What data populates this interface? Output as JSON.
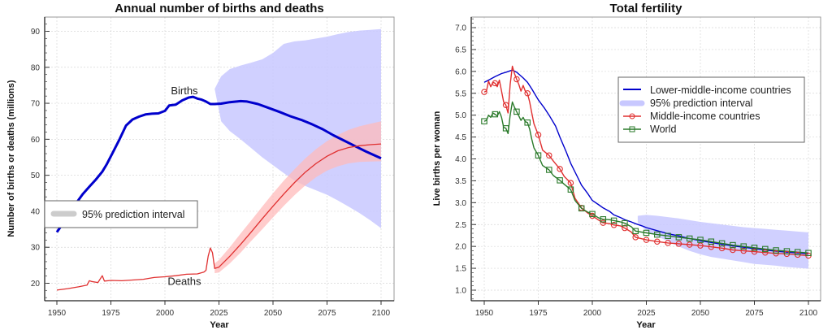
{
  "chart_data": [
    {
      "type": "line",
      "title": "Annual number of births and deaths",
      "xlabel": "Year",
      "ylabel": "Number of births or deaths (millions)",
      "xlim": [
        1945,
        2105
      ],
      "ylim": [
        15,
        94
      ],
      "xticks": [
        1950,
        1975,
        2000,
        2025,
        2050,
        2075,
        2100
      ],
      "yticks": [
        20,
        30,
        40,
        50,
        60,
        70,
        80,
        90
      ],
      "grid": true,
      "legend": {
        "position": "left-middle",
        "entries": [
          "95% prediction interval"
        ]
      },
      "annotations": [
        {
          "text": "Births",
          "x": 2009,
          "y": 72.5
        },
        {
          "text": "Deaths",
          "x": 2009,
          "y": 19.5
        }
      ],
      "series": [
        {
          "name": "Births",
          "color": "#0000cc",
          "x": [
            1950,
            1953,
            1956,
            1959,
            1962,
            1965,
            1968,
            1971,
            1973,
            1976,
            1979,
            1982,
            1985,
            1988,
            1991,
            1994,
            1997,
            2000,
            2002,
            2005,
            2008,
            2011,
            2013,
            2015,
            2017,
            2019,
            2021,
            2023,
            2026,
            2030,
            2035,
            2038,
            2043,
            2048,
            2053,
            2058,
            2063,
            2068,
            2073,
            2078,
            2083,
            2088,
            2093,
            2100
          ],
          "y": [
            34.2,
            36.8,
            39.5,
            42.3,
            44.8,
            46.8,
            48.8,
            51.0,
            53.0,
            56.5,
            60.0,
            63.8,
            65.5,
            66.3,
            66.9,
            67.1,
            67.2,
            67.9,
            69.4,
            69.6,
            70.8,
            71.6,
            71.8,
            71.3,
            71.0,
            70.5,
            69.8,
            69.8,
            69.9,
            70.3,
            70.6,
            70.5,
            69.8,
            68.7,
            67.6,
            66.4,
            65.4,
            64.2,
            62.8,
            61.1,
            59.6,
            58.1,
            56.6,
            54.7
          ]
        },
        {
          "name": "Births 95% prediction interval",
          "type": "area",
          "color": "#c8c8ff",
          "x": [
            2023,
            2026,
            2030,
            2035,
            2040,
            2045,
            2050,
            2055,
            2060,
            2065,
            2070,
            2075,
            2080,
            2085,
            2090,
            2095,
            2100
          ],
          "lower": [
            74.0,
            65.0,
            62.3,
            60.0,
            57.5,
            55.0,
            52.8,
            50.6,
            48.5,
            47.0,
            45.8,
            44.6,
            43.0,
            41.3,
            39.5,
            37.5,
            35.3
          ],
          "upper": [
            74.0,
            77.5,
            79.5,
            80.5,
            81.3,
            82.2,
            84.0,
            86.5,
            87.2,
            87.5,
            88.0,
            88.5,
            89.2,
            89.8,
            90.2,
            90.4,
            90.6
          ]
        },
        {
          "name": "Deaths",
          "color": "#e03030",
          "x": [
            1950,
            1955,
            1960,
            1964,
            1965,
            1966,
            1969,
            1971,
            1972,
            1975,
            1980,
            1985,
            1990,
            1995,
            2000,
            2005,
            2010,
            2015,
            2018,
            2019,
            2020,
            2021,
            2022,
            2023,
            2025,
            2030,
            2035,
            2040,
            2045,
            2050,
            2055,
            2060,
            2065,
            2070,
            2075,
            2080,
            2085,
            2090,
            2095,
            2100
          ],
          "y": [
            18.1,
            18.5,
            19.0,
            19.5,
            20.7,
            20.5,
            20.2,
            22.1,
            20.6,
            20.8,
            20.7,
            20.9,
            21.1,
            21.6,
            21.8,
            22.1,
            22.5,
            22.6,
            23.1,
            23.6,
            27.5,
            29.8,
            28.5,
            24.1,
            24.5,
            27.5,
            30.8,
            34.3,
            37.9,
            41.4,
            44.8,
            48.0,
            50.9,
            53.3,
            55.3,
            56.8,
            57.7,
            58.2,
            58.5,
            58.7
          ]
        },
        {
          "name": "Deaths 95% prediction interval",
          "type": "area",
          "color": "#ffbbbb",
          "x": [
            2023,
            2025,
            2030,
            2035,
            2040,
            2045,
            2050,
            2055,
            2060,
            2065,
            2070,
            2075,
            2080,
            2085,
            2090,
            2095,
            2100
          ],
          "lower": [
            22.8,
            23.0,
            25.5,
            28.5,
            31.8,
            35.0,
            38.3,
            41.5,
            44.5,
            47.2,
            49.5,
            51.3,
            52.5,
            53.3,
            53.7,
            53.8,
            53.9
          ],
          "upper": [
            25.5,
            26.5,
            30.0,
            33.8,
            37.5,
            41.3,
            45.0,
            48.5,
            51.7,
            54.7,
            57.3,
            59.5,
            61.2,
            62.6,
            63.6,
            64.3,
            65.0
          ]
        }
      ]
    },
    {
      "type": "line",
      "title": "Total fertility",
      "xlabel": "Year",
      "ylabel": "Live births per woman",
      "xlim": [
        1945,
        2105
      ],
      "ylim": [
        0.75,
        7.2
      ],
      "xticks": [
        1950,
        1975,
        2000,
        2025,
        2050,
        2075,
        2100
      ],
      "yticks": [
        1.0,
        1.5,
        2.0,
        2.5,
        3.0,
        3.5,
        4.0,
        4.5,
        5.0,
        5.5,
        6.0,
        6.5,
        7.0
      ],
      "grid": true,
      "legend": {
        "position": "top-right",
        "entries": [
          "Lower-middle-income countries",
          "95% prediction interval",
          "Middle-income countries",
          "World"
        ]
      },
      "series": [
        {
          "name": "Lower-middle-income countries",
          "color": "#0000cc",
          "x": [
            1950,
            1952,
            1955,
            1958,
            1960,
            1963,
            1965,
            1968,
            1970,
            1972,
            1975,
            1978,
            1980,
            1983,
            1985,
            1988,
            1990,
            1993,
            1995,
            1998,
            2000,
            2003,
            2005,
            2008,
            2010,
            2013,
            2015,
            2018,
            2020,
            2023,
            2025,
            2030,
            2035,
            2040,
            2045,
            2050,
            2055,
            2060,
            2065,
            2070,
            2075,
            2080,
            2085,
            2090,
            2095,
            2100
          ],
          "y": [
            5.75,
            5.8,
            5.88,
            5.95,
            5.98,
            6.03,
            5.98,
            5.85,
            5.75,
            5.6,
            5.35,
            5.15,
            5.0,
            4.75,
            4.5,
            4.15,
            3.9,
            3.6,
            3.4,
            3.2,
            3.05,
            2.95,
            2.88,
            2.8,
            2.72,
            2.66,
            2.61,
            2.56,
            2.52,
            2.47,
            2.43,
            2.36,
            2.29,
            2.24,
            2.18,
            2.13,
            2.09,
            2.05,
            2.01,
            1.98,
            1.95,
            1.92,
            1.89,
            1.87,
            1.85,
            1.83
          ]
        },
        {
          "name": "95% prediction interval",
          "type": "area",
          "color": "#c8c8ff",
          "x": [
            2021,
            2025,
            2030,
            2035,
            2040,
            2045,
            2050,
            2055,
            2060,
            2065,
            2070,
            2075,
            2080,
            2085,
            2090,
            2095,
            2100
          ],
          "lower": [
            2.55,
            2.35,
            2.23,
            2.12,
            2.0,
            1.9,
            1.82,
            1.76,
            1.72,
            1.68,
            1.64,
            1.6,
            1.58,
            1.56,
            1.53,
            1.51,
            1.49
          ],
          "upper": [
            2.7,
            2.72,
            2.7,
            2.67,
            2.64,
            2.6,
            2.56,
            2.53,
            2.5,
            2.47,
            2.44,
            2.42,
            2.4,
            2.38,
            2.36,
            2.34,
            2.32
          ]
        },
        {
          "name": "Middle-income countries",
          "color": "#e03030",
          "marker": "circle",
          "x": [
            1950,
            1951,
            1952,
            1953,
            1954,
            1955,
            1956,
            1957,
            1958,
            1959,
            1960,
            1961,
            1962,
            1963,
            1964,
            1965,
            1966,
            1967,
            1968,
            1969,
            1970,
            1971,
            1972,
            1973,
            1975,
            1977,
            1980,
            1982,
            1985,
            1987,
            1990,
            1992,
            1995,
            1998,
            2000,
            2003,
            2005,
            2008,
            2010,
            2013,
            2015,
            2018,
            2020,
            2025,
            2030,
            2035,
            2040,
            2045,
            2050,
            2055,
            2060,
            2065,
            2070,
            2075,
            2080,
            2085,
            2090,
            2095,
            2100
          ],
          "y": [
            5.53,
            5.55,
            5.78,
            5.65,
            5.75,
            5.73,
            5.65,
            5.8,
            5.55,
            5.3,
            5.23,
            5.05,
            5.7,
            6.12,
            5.95,
            5.82,
            5.7,
            5.55,
            5.68,
            5.55,
            5.5,
            5.3,
            5.05,
            4.8,
            4.55,
            4.2,
            4.08,
            3.95,
            3.77,
            3.6,
            3.45,
            3.1,
            2.88,
            2.76,
            2.7,
            2.6,
            2.54,
            2.52,
            2.49,
            2.47,
            2.42,
            2.33,
            2.21,
            2.15,
            2.11,
            2.08,
            2.06,
            2.04,
            2.02,
            1.99,
            1.96,
            1.92,
            1.9,
            1.88,
            1.86,
            1.84,
            1.83,
            1.81,
            1.79
          ],
          "marker_x": [
            1950,
            1955,
            1960,
            1965,
            1970,
            1975,
            1980,
            1985,
            1990,
            1995,
            2000,
            2005,
            2010,
            2015,
            2020,
            2025,
            2030,
            2035,
            2040,
            2045,
            2050,
            2055,
            2060,
            2065,
            2070,
            2075,
            2080,
            2085,
            2090,
            2095,
            2100
          ]
        },
        {
          "name": "World",
          "color": "#2a7a2a",
          "marker": "square",
          "x": [
            1950,
            1951,
            1952,
            1953,
            1954,
            1955,
            1956,
            1957,
            1958,
            1959,
            1960,
            1961,
            1962,
            1963,
            1964,
            1965,
            1966,
            1967,
            1968,
            1969,
            1970,
            1971,
            1972,
            1973,
            1975,
            1977,
            1980,
            1982,
            1985,
            1987,
            1990,
            1992,
            1995,
            1998,
            2000,
            2003,
            2005,
            2008,
            2010,
            2013,
            2015,
            2018,
            2020,
            2025,
            2030,
            2035,
            2040,
            2045,
            2050,
            2055,
            2060,
            2065,
            2070,
            2075,
            2080,
            2085,
            2090,
            2095,
            2100
          ],
          "y": [
            4.86,
            4.88,
            5.0,
            4.95,
            5.05,
            5.02,
            4.98,
            5.08,
            4.95,
            4.72,
            4.7,
            4.58,
            5.0,
            5.3,
            5.18,
            5.08,
            4.98,
            4.88,
            4.95,
            4.85,
            4.83,
            4.68,
            4.45,
            4.25,
            4.08,
            3.85,
            3.75,
            3.62,
            3.51,
            3.42,
            3.3,
            3.05,
            2.87,
            2.78,
            2.74,
            2.65,
            2.62,
            2.61,
            2.59,
            2.56,
            2.53,
            2.45,
            2.35,
            2.31,
            2.27,
            2.24,
            2.21,
            2.18,
            2.15,
            2.11,
            2.07,
            2.03,
            2.0,
            1.97,
            1.94,
            1.91,
            1.89,
            1.87,
            1.85
          ],
          "marker_x": [
            1950,
            1955,
            1960,
            1965,
            1970,
            1975,
            1980,
            1985,
            1990,
            1995,
            2000,
            2005,
            2010,
            2015,
            2020,
            2025,
            2030,
            2035,
            2040,
            2045,
            2050,
            2055,
            2060,
            2065,
            2070,
            2075,
            2080,
            2085,
            2090,
            2095,
            2100
          ]
        }
      ]
    }
  ]
}
